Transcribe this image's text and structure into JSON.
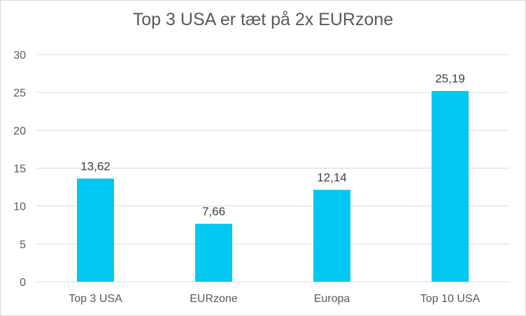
{
  "chart_data": {
    "type": "bar",
    "title": "Top 3 USA er tæt på 2x EURzone",
    "categories": [
      "Top 3 USA",
      "EURzone",
      "Europa",
      "Top 10 USA"
    ],
    "values": [
      13.62,
      7.66,
      12.14,
      25.19
    ],
    "value_labels": [
      "13,62",
      "7,66",
      "12,14",
      "25,19"
    ],
    "y_ticks": [
      "0",
      "5",
      "10",
      "15",
      "20",
      "25",
      "30"
    ],
    "ylim": [
      0,
      30
    ],
    "xlabel": "",
    "ylabel": "",
    "grid": true,
    "legend": "none",
    "bar_color": "#00C8F3",
    "grid_color": "#D9D9D9"
  }
}
